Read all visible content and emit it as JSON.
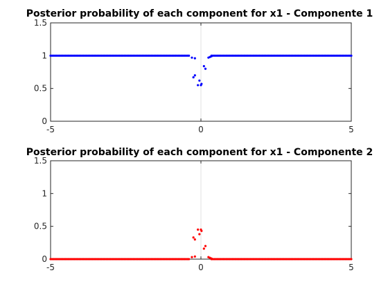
{
  "chart_data": [
    {
      "type": "scatter",
      "title": "Posterior probability of each component for x1 - Componente 1",
      "xlabel": "",
      "ylabel": "",
      "xlim": [
        -5,
        5
      ],
      "ylim": [
        0,
        1.5
      ],
      "xticks": [
        "-5",
        "0",
        "5"
      ],
      "yticks": [
        "0",
        "0.5",
        "1",
        "1.5"
      ],
      "grid": "x=0 line only",
      "color": "#0000ff",
      "baseline": {
        "value": 1,
        "x_from": -5,
        "x_to": 5,
        "step": 0.05,
        "exclude_from": -0.35,
        "exclude_to": 0.35
      },
      "points": [
        [
          -0.3,
          0.97
        ],
        [
          -0.2,
          0.96
        ],
        [
          0.1,
          0.84
        ],
        [
          0.15,
          0.8
        ],
        [
          0.25,
          0.97
        ],
        [
          0.3,
          0.98
        ],
        [
          0.35,
          0.99
        ],
        [
          -0.25,
          0.67
        ],
        [
          -0.2,
          0.7
        ],
        [
          -0.1,
          0.55
        ],
        [
          -0.05,
          0.62
        ],
        [
          0.0,
          0.55
        ],
        [
          0.02,
          0.57
        ]
      ]
    },
    {
      "type": "scatter",
      "title": "Posterior probability of each component for x1 - Componente 2",
      "xlabel": "",
      "ylabel": "",
      "xlim": [
        -5,
        5
      ],
      "ylim": [
        0,
        1.5
      ],
      "xticks": [
        "-5",
        "0",
        "5"
      ],
      "yticks": [
        "0",
        "0.5",
        "1",
        "1.5"
      ],
      "grid": "x=0 line only",
      "color": "#ff0000",
      "baseline": {
        "value": 0,
        "x_from": -5,
        "x_to": 5,
        "step": 0.05,
        "exclude_from": -0.35,
        "exclude_to": 0.35
      },
      "points": [
        [
          -0.3,
          0.03
        ],
        [
          -0.2,
          0.04
        ],
        [
          0.1,
          0.16
        ],
        [
          0.15,
          0.2
        ],
        [
          0.25,
          0.03
        ],
        [
          0.3,
          0.02
        ],
        [
          0.35,
          0.01
        ],
        [
          -0.25,
          0.33
        ],
        [
          -0.2,
          0.3
        ],
        [
          -0.1,
          0.45
        ],
        [
          -0.05,
          0.38
        ],
        [
          0.0,
          0.45
        ],
        [
          0.02,
          0.43
        ]
      ]
    }
  ]
}
